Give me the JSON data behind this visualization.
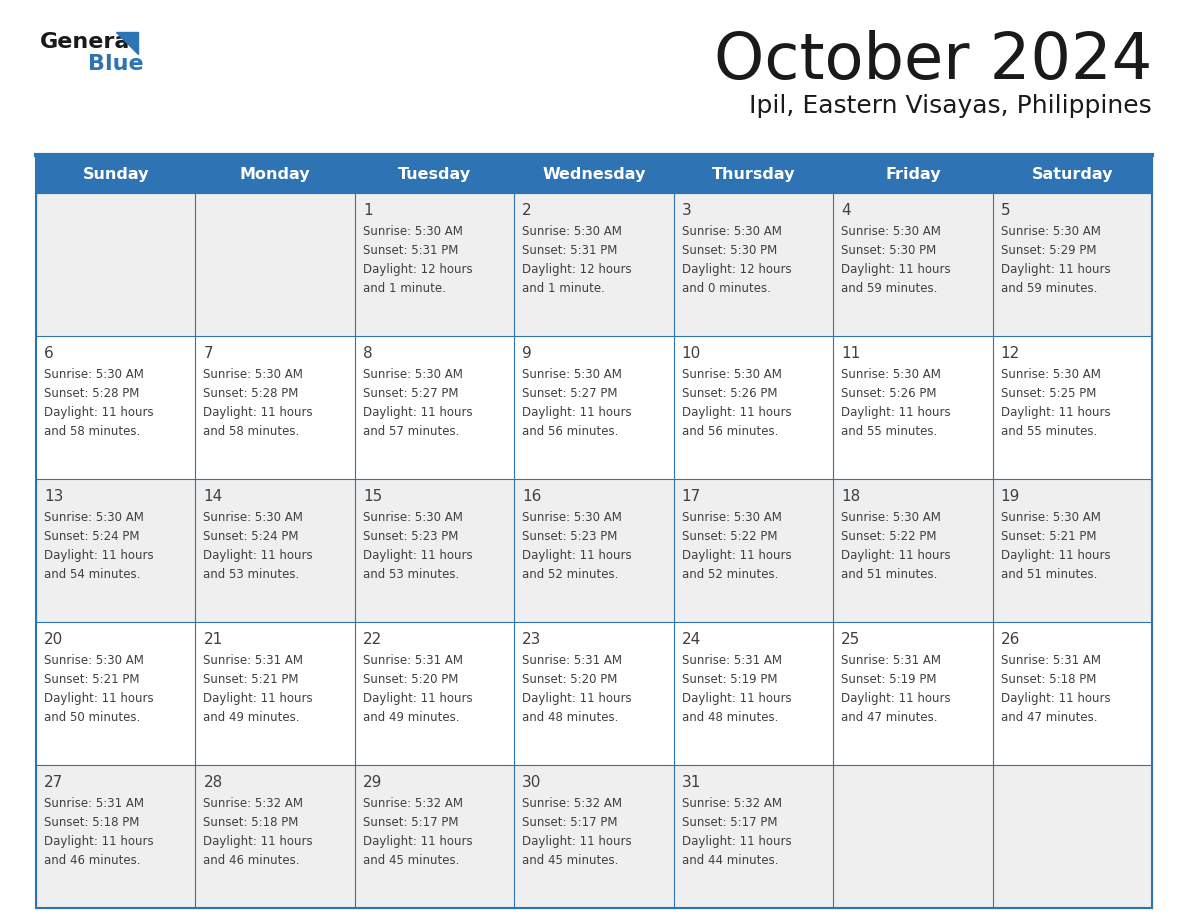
{
  "title": "October 2024",
  "subtitle": "Ipil, Eastern Visayas, Philippines",
  "header_bg_color": "#2e74b5",
  "header_text_color": "#ffffff",
  "row_bg_odd": "#efefef",
  "row_bg_even": "#ffffff",
  "border_color": "#2e74b5",
  "text_color": "#404040",
  "day_num_color": "#404040",
  "days_of_week": [
    "Sunday",
    "Monday",
    "Tuesday",
    "Wednesday",
    "Thursday",
    "Friday",
    "Saturday"
  ],
  "calendar_data": [
    [
      {
        "day": "",
        "sunrise": "",
        "sunset": "",
        "daylight": ""
      },
      {
        "day": "",
        "sunrise": "",
        "sunset": "",
        "daylight": ""
      },
      {
        "day": "1",
        "sunrise": "5:30 AM",
        "sunset": "5:31 PM",
        "daylight": "12 hours\nand 1 minute."
      },
      {
        "day": "2",
        "sunrise": "5:30 AM",
        "sunset": "5:31 PM",
        "daylight": "12 hours\nand 1 minute."
      },
      {
        "day": "3",
        "sunrise": "5:30 AM",
        "sunset": "5:30 PM",
        "daylight": "12 hours\nand 0 minutes."
      },
      {
        "day": "4",
        "sunrise": "5:30 AM",
        "sunset": "5:30 PM",
        "daylight": "11 hours\nand 59 minutes."
      },
      {
        "day": "5",
        "sunrise": "5:30 AM",
        "sunset": "5:29 PM",
        "daylight": "11 hours\nand 59 minutes."
      }
    ],
    [
      {
        "day": "6",
        "sunrise": "5:30 AM",
        "sunset": "5:28 PM",
        "daylight": "11 hours\nand 58 minutes."
      },
      {
        "day": "7",
        "sunrise": "5:30 AM",
        "sunset": "5:28 PM",
        "daylight": "11 hours\nand 58 minutes."
      },
      {
        "day": "8",
        "sunrise": "5:30 AM",
        "sunset": "5:27 PM",
        "daylight": "11 hours\nand 57 minutes."
      },
      {
        "day": "9",
        "sunrise": "5:30 AM",
        "sunset": "5:27 PM",
        "daylight": "11 hours\nand 56 minutes."
      },
      {
        "day": "10",
        "sunrise": "5:30 AM",
        "sunset": "5:26 PM",
        "daylight": "11 hours\nand 56 minutes."
      },
      {
        "day": "11",
        "sunrise": "5:30 AM",
        "sunset": "5:26 PM",
        "daylight": "11 hours\nand 55 minutes."
      },
      {
        "day": "12",
        "sunrise": "5:30 AM",
        "sunset": "5:25 PM",
        "daylight": "11 hours\nand 55 minutes."
      }
    ],
    [
      {
        "day": "13",
        "sunrise": "5:30 AM",
        "sunset": "5:24 PM",
        "daylight": "11 hours\nand 54 minutes."
      },
      {
        "day": "14",
        "sunrise": "5:30 AM",
        "sunset": "5:24 PM",
        "daylight": "11 hours\nand 53 minutes."
      },
      {
        "day": "15",
        "sunrise": "5:30 AM",
        "sunset": "5:23 PM",
        "daylight": "11 hours\nand 53 minutes."
      },
      {
        "day": "16",
        "sunrise": "5:30 AM",
        "sunset": "5:23 PM",
        "daylight": "11 hours\nand 52 minutes."
      },
      {
        "day": "17",
        "sunrise": "5:30 AM",
        "sunset": "5:22 PM",
        "daylight": "11 hours\nand 52 minutes."
      },
      {
        "day": "18",
        "sunrise": "5:30 AM",
        "sunset": "5:22 PM",
        "daylight": "11 hours\nand 51 minutes."
      },
      {
        "day": "19",
        "sunrise": "5:30 AM",
        "sunset": "5:21 PM",
        "daylight": "11 hours\nand 51 minutes."
      }
    ],
    [
      {
        "day": "20",
        "sunrise": "5:30 AM",
        "sunset": "5:21 PM",
        "daylight": "11 hours\nand 50 minutes."
      },
      {
        "day": "21",
        "sunrise": "5:31 AM",
        "sunset": "5:21 PM",
        "daylight": "11 hours\nand 49 minutes."
      },
      {
        "day": "22",
        "sunrise": "5:31 AM",
        "sunset": "5:20 PM",
        "daylight": "11 hours\nand 49 minutes."
      },
      {
        "day": "23",
        "sunrise": "5:31 AM",
        "sunset": "5:20 PM",
        "daylight": "11 hours\nand 48 minutes."
      },
      {
        "day": "24",
        "sunrise": "5:31 AM",
        "sunset": "5:19 PM",
        "daylight": "11 hours\nand 48 minutes."
      },
      {
        "day": "25",
        "sunrise": "5:31 AM",
        "sunset": "5:19 PM",
        "daylight": "11 hours\nand 47 minutes."
      },
      {
        "day": "26",
        "sunrise": "5:31 AM",
        "sunset": "5:18 PM",
        "daylight": "11 hours\nand 47 minutes."
      }
    ],
    [
      {
        "day": "27",
        "sunrise": "5:31 AM",
        "sunset": "5:18 PM",
        "daylight": "11 hours\nand 46 minutes."
      },
      {
        "day": "28",
        "sunrise": "5:32 AM",
        "sunset": "5:18 PM",
        "daylight": "11 hours\nand 46 minutes."
      },
      {
        "day": "29",
        "sunrise": "5:32 AM",
        "sunset": "5:17 PM",
        "daylight": "11 hours\nand 45 minutes."
      },
      {
        "day": "30",
        "sunrise": "5:32 AM",
        "sunset": "5:17 PM",
        "daylight": "11 hours\nand 45 minutes."
      },
      {
        "day": "31",
        "sunrise": "5:32 AM",
        "sunset": "5:17 PM",
        "daylight": "11 hours\nand 44 minutes."
      },
      {
        "day": "",
        "sunrise": "",
        "sunset": "",
        "daylight": ""
      },
      {
        "day": "",
        "sunrise": "",
        "sunset": "",
        "daylight": ""
      }
    ]
  ],
  "logo_general_color": "#1a1a1a",
  "logo_blue_color": "#2e74b5",
  "logo_triangle_color": "#2e74b5"
}
